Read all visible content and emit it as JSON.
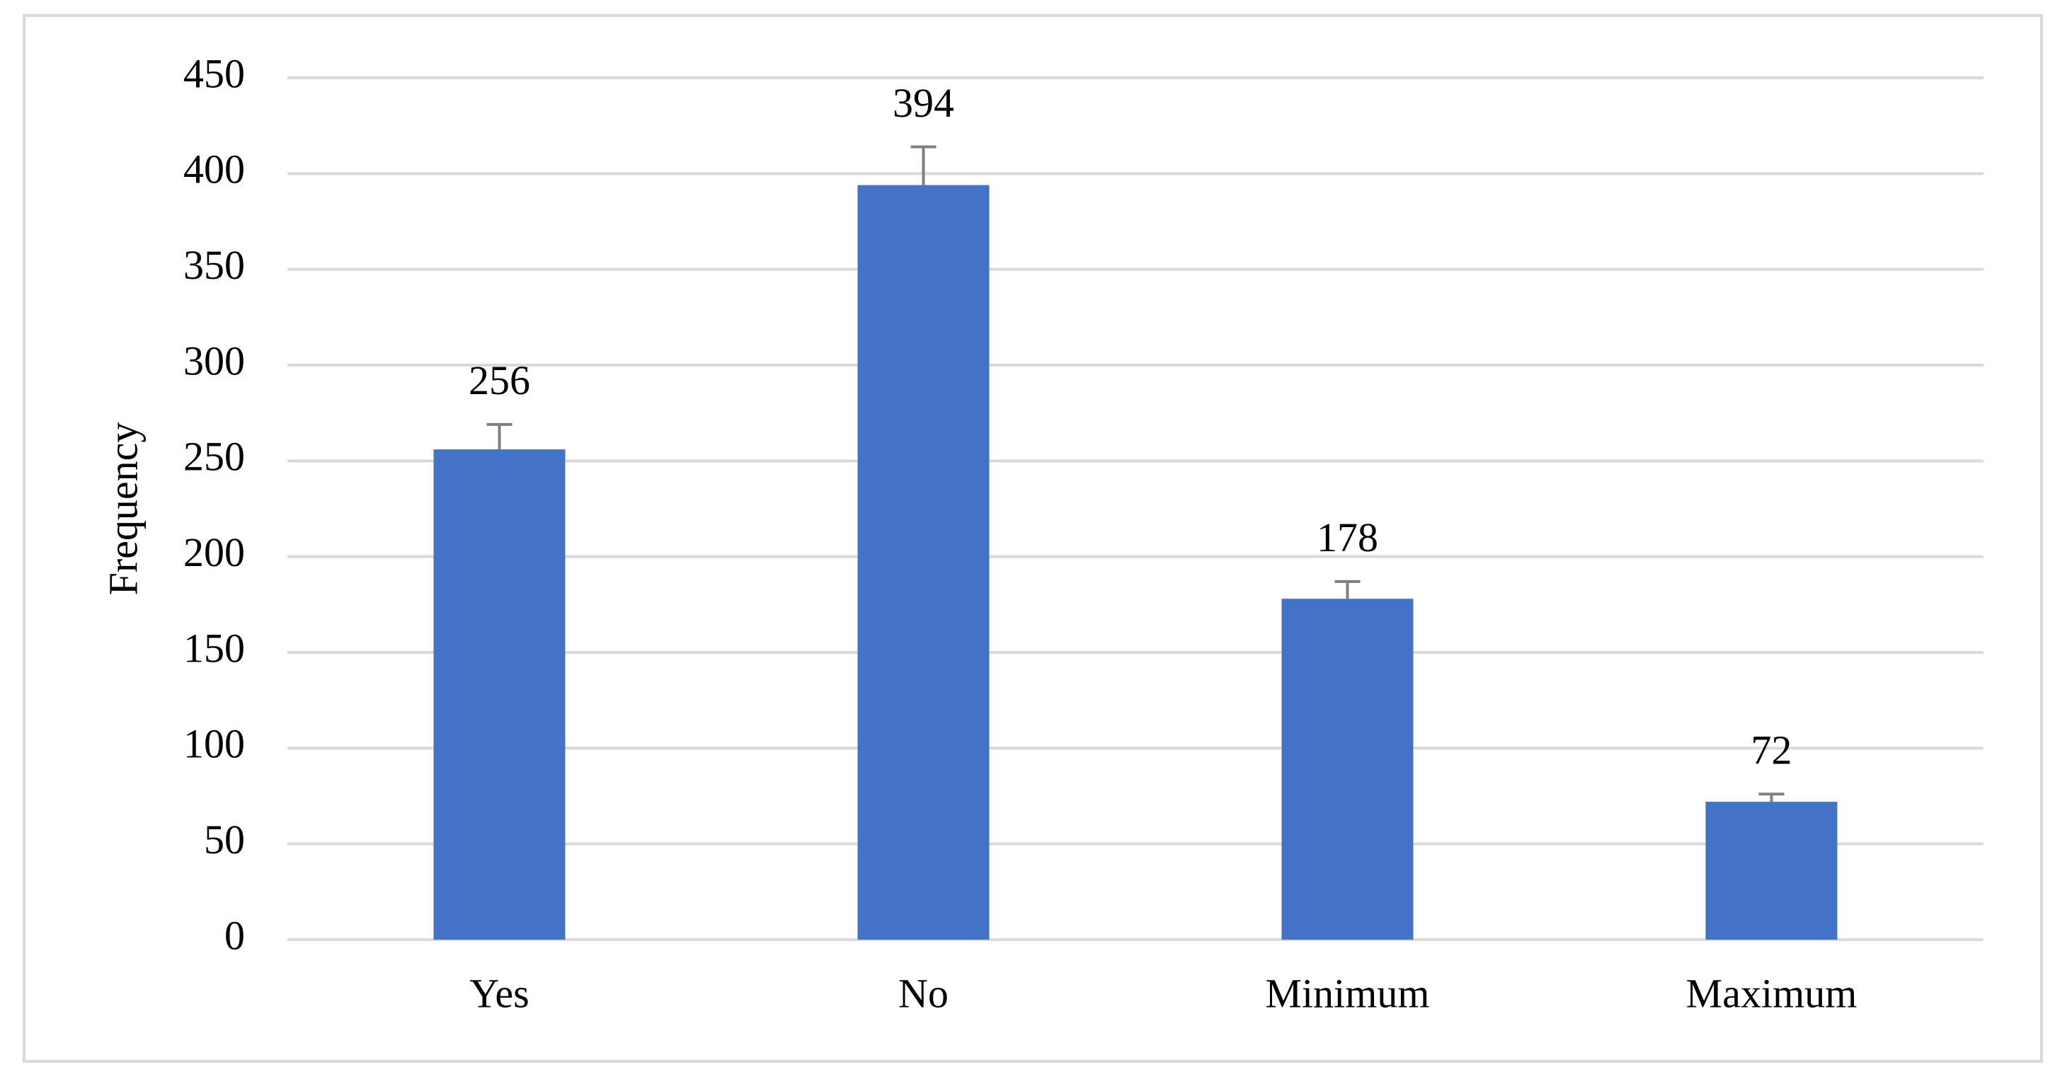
{
  "chart_data": {
    "type": "bar",
    "y_label": "Frequency",
    "categories": [
      "Yes",
      "No",
      "Minimum",
      "Maximum"
    ],
    "values": [
      256,
      394,
      178,
      72
    ],
    "errors": [
      13,
      20,
      9,
      4
    ],
    "color": "#4472c4",
    "error_color": "#7f7f7f",
    "ylim": [
      0,
      450
    ],
    "yticks": [
      0,
      50,
      100,
      150,
      200,
      250,
      300,
      350,
      400,
      450
    ],
    "grid": true
  }
}
